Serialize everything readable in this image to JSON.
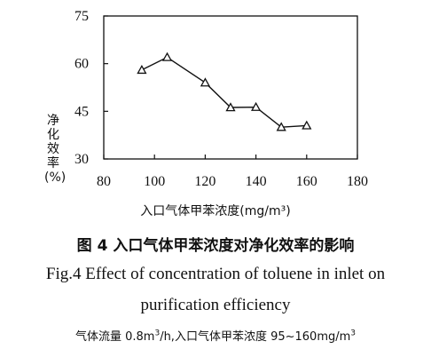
{
  "chart_data": {
    "type": "line",
    "x": [
      95,
      105,
      120,
      130,
      140,
      150,
      160
    ],
    "y": [
      58,
      62,
      54,
      46.2,
      46.3,
      40,
      40.5
    ],
    "xlim": [
      80,
      180
    ],
    "ylim": [
      30,
      75
    ],
    "xticks": [
      "80",
      "100",
      "120",
      "140",
      "160",
      "180"
    ],
    "yticks": [
      "75",
      "60",
      "45",
      "30"
    ],
    "xlabel": "入口气体甲苯浓度(mg/m³)",
    "ylabel": "净化效率(%)",
    "marker": "triangle-open",
    "grid": false,
    "colors": {
      "line": "#111111"
    }
  },
  "caption": {
    "cn": "图 4   入口气体甲苯浓度对净化效率的影响",
    "en_line1": "Fig.4    Effect of concentration of toluene in inlet on",
    "en_line2": "purification efficiency"
  },
  "note": {
    "part1": "气体流量 0.8m",
    "sup1": "3",
    "part2": "/h,入口气体甲苯浓度 95~160mg/m",
    "sup2": "3"
  }
}
